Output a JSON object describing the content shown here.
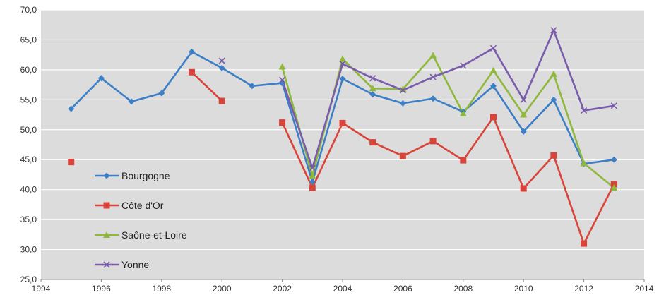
{
  "chart_data": {
    "type": "line",
    "title": "",
    "xlabel": "",
    "ylabel": "",
    "xlim": [
      1994,
      2014
    ],
    "ylim": [
      25,
      70
    ],
    "x_ticks": [
      "1994",
      "1996",
      "1998",
      "2000",
      "2002",
      "2004",
      "2006",
      "2008",
      "2010",
      "2012",
      "2014"
    ],
    "y_ticks": [
      "25,0",
      "30,0",
      "35,0",
      "40,0",
      "45,0",
      "50,0",
      "55,0",
      "60,0",
      "65,0",
      "70,0"
    ],
    "grid": "horizontal",
    "legend_position": "left-bottom inside plot",
    "background": "#dcdcdc",
    "series": [
      {
        "name": "Bourgogne",
        "color": "#3c7fc6",
        "marker": "diamond",
        "points": [
          [
            1995,
            53.5
          ],
          [
            1996,
            58.6
          ],
          [
            1997,
            54.7
          ],
          [
            1998,
            56.1
          ],
          [
            1999,
            63.0
          ],
          [
            2000,
            60.3
          ],
          [
            2001,
            57.3
          ],
          [
            2002,
            57.8
          ],
          [
            2003,
            41.3
          ],
          [
            2004,
            58.5
          ],
          [
            2005,
            55.9
          ],
          [
            2006,
            54.4
          ],
          [
            2007,
            55.2
          ],
          [
            2008,
            53.0
          ],
          [
            2009,
            57.3
          ],
          [
            2010,
            49.7
          ],
          [
            2011,
            55.0
          ],
          [
            2012,
            44.3
          ],
          [
            2013,
            45.0
          ]
        ]
      },
      {
        "name": "Côte d'Or",
        "color": "#d9443a",
        "marker": "square",
        "points": [
          [
            1995,
            44.6
          ],
          [
            1999,
            59.6
          ],
          [
            2000,
            54.8
          ],
          [
            2002,
            51.2
          ],
          [
            2003,
            40.3
          ],
          [
            2004,
            51.1
          ],
          [
            2005,
            47.9
          ],
          [
            2006,
            45.6
          ],
          [
            2007,
            48.1
          ],
          [
            2008,
            44.9
          ],
          [
            2009,
            52.1
          ],
          [
            2010,
            40.2
          ],
          [
            2011,
            45.7
          ],
          [
            2012,
            31.0
          ],
          [
            2013,
            40.9
          ]
        ]
      },
      {
        "name": "Saône-et-Loire",
        "color": "#8fb83c",
        "marker": "triangle",
        "points": [
          [
            2002,
            60.5
          ],
          [
            2003,
            42.3
          ],
          [
            2004,
            61.8
          ],
          [
            2005,
            56.9
          ],
          [
            2006,
            56.8
          ],
          [
            2007,
            62.4
          ],
          [
            2008,
            52.7
          ],
          [
            2009,
            59.9
          ],
          [
            2010,
            52.5
          ],
          [
            2011,
            59.3
          ],
          [
            2012,
            44.4
          ],
          [
            2013,
            40.3
          ]
        ]
      },
      {
        "name": "Yonne",
        "color": "#7a5cac",
        "marker": "x",
        "points": [
          [
            2000,
            61.5
          ],
          [
            2002,
            58.3
          ],
          [
            2003,
            43.6
          ],
          [
            2004,
            61.0
          ],
          [
            2005,
            58.6
          ],
          [
            2006,
            56.6
          ],
          [
            2007,
            58.8
          ],
          [
            2008,
            60.7
          ],
          [
            2009,
            63.6
          ],
          [
            2010,
            55.0
          ],
          [
            2011,
            66.6
          ],
          [
            2012,
            53.2
          ],
          [
            2013,
            54.0
          ]
        ]
      }
    ]
  }
}
